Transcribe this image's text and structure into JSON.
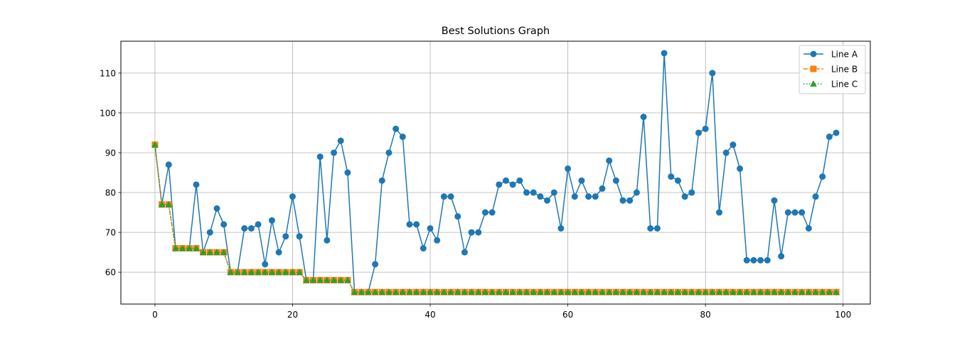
{
  "chart_data": {
    "type": "line",
    "title": "Best Solutions Graph",
    "xlabel": "",
    "ylabel": "",
    "xlim": [
      -4.95,
      103.95
    ],
    "ylim": [
      52,
      118
    ],
    "x_ticks": [
      0,
      20,
      40,
      60,
      80,
      100
    ],
    "y_ticks": [
      60,
      70,
      80,
      90,
      100,
      110
    ],
    "grid": true,
    "legend_position": "top-right",
    "x": [
      0,
      1,
      2,
      3,
      4,
      5,
      6,
      7,
      8,
      9,
      10,
      11,
      12,
      13,
      14,
      15,
      16,
      17,
      18,
      19,
      20,
      21,
      22,
      23,
      24,
      25,
      26,
      27,
      28,
      29,
      30,
      31,
      32,
      33,
      34,
      35,
      36,
      37,
      38,
      39,
      40,
      41,
      42,
      43,
      44,
      45,
      46,
      47,
      48,
      49,
      50,
      51,
      52,
      53,
      54,
      55,
      56,
      57,
      58,
      59,
      60,
      61,
      62,
      63,
      64,
      65,
      66,
      67,
      68,
      69,
      70,
      71,
      72,
      73,
      74,
      75,
      76,
      77,
      78,
      79,
      80,
      81,
      82,
      83,
      84,
      85,
      86,
      87,
      88,
      89,
      90,
      91,
      92,
      93,
      94,
      95,
      96,
      97,
      98,
      99
    ],
    "series": [
      {
        "name": "Line A",
        "color": "#1f77b4",
        "marker": "circle",
        "linestyle": "solid",
        "values": [
          92,
          77,
          87,
          66,
          66,
          66,
          82,
          65,
          70,
          76,
          72,
          60,
          60,
          71,
          71,
          72,
          62,
          73,
          65,
          69,
          79,
          69,
          58,
          58,
          89,
          68,
          90,
          93,
          85,
          55,
          55,
          55,
          62,
          83,
          90,
          96,
          94,
          72,
          72,
          66,
          71,
          68,
          79,
          79,
          74,
          65,
          70,
          70,
          75,
          75,
          82,
          83,
          82,
          83,
          80,
          80,
          79,
          78,
          80,
          71,
          86,
          79,
          83,
          79,
          79,
          81,
          88,
          83,
          78,
          78,
          80,
          99,
          71,
          71,
          115,
          84,
          83,
          79,
          80,
          95,
          96,
          110,
          75,
          90,
          92,
          86,
          63,
          63,
          63,
          63,
          78,
          64,
          75,
          75,
          75,
          71,
          79,
          84,
          94,
          95
        ]
      },
      {
        "name": "Line B",
        "color": "#ff7f0e",
        "marker": "square",
        "linestyle": "dashed",
        "values": [
          92,
          77,
          77,
          66,
          66,
          66,
          66,
          65,
          65,
          65,
          65,
          60,
          60,
          60,
          60,
          60,
          60,
          60,
          60,
          60,
          60,
          60,
          58,
          58,
          58,
          58,
          58,
          58,
          58,
          55,
          55,
          55,
          55,
          55,
          55,
          55,
          55,
          55,
          55,
          55,
          55,
          55,
          55,
          55,
          55,
          55,
          55,
          55,
          55,
          55,
          55,
          55,
          55,
          55,
          55,
          55,
          55,
          55,
          55,
          55,
          55,
          55,
          55,
          55,
          55,
          55,
          55,
          55,
          55,
          55,
          55,
          55,
          55,
          55,
          55,
          55,
          55,
          55,
          55,
          55,
          55,
          55,
          55,
          55,
          55,
          55,
          55,
          55,
          55,
          55,
          55,
          55,
          55,
          55,
          55,
          55,
          55,
          55,
          55,
          55
        ]
      },
      {
        "name": "Line C",
        "color": "#2ca02c",
        "marker": "triangle",
        "linestyle": "dotted",
        "values": [
          92,
          77,
          77,
          66,
          66,
          66,
          66,
          65,
          65,
          65,
          65,
          60,
          60,
          60,
          60,
          60,
          60,
          60,
          60,
          60,
          60,
          60,
          58,
          58,
          58,
          58,
          58,
          58,
          58,
          55,
          55,
          55,
          55,
          55,
          55,
          55,
          55,
          55,
          55,
          55,
          55,
          55,
          55,
          55,
          55,
          55,
          55,
          55,
          55,
          55,
          55,
          55,
          55,
          55,
          55,
          55,
          55,
          55,
          55,
          55,
          55,
          55,
          55,
          55,
          55,
          55,
          55,
          55,
          55,
          55,
          55,
          55,
          55,
          55,
          55,
          55,
          55,
          55,
          55,
          55,
          55,
          55,
          55,
          55,
          55,
          55,
          55,
          55,
          55,
          55,
          55,
          55,
          55,
          55,
          55,
          55,
          55,
          55,
          55,
          55
        ]
      }
    ]
  }
}
